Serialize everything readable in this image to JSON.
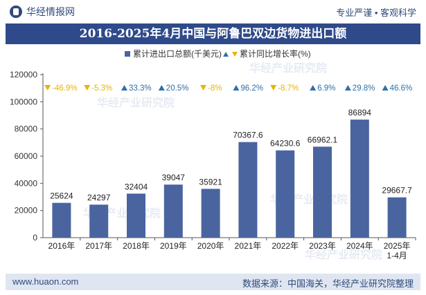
{
  "header": {
    "brand_name": "华经情报网",
    "tagline": "专业严谨 • 客观科学"
  },
  "title": "2016-2025年4月中国与阿鲁巴双边货物进出口额",
  "colors": {
    "bar": "#4a64a0",
    "growth_up": "#2f6fa8",
    "growth_down": "#e8b400",
    "title_bg": "#2f4a8a",
    "footer_bg": "#dfe6f1"
  },
  "watermark_text": "华经产业研究院",
  "chart_data": {
    "type": "bar",
    "categories": [
      "2016年",
      "2017年",
      "2018年",
      "2019年",
      "2020年",
      "2021年",
      "2022年",
      "2023年",
      "2024年",
      "2025年 1-4月"
    ],
    "series": [
      {
        "name": "累计进出口总额(千美元)",
        "values": [
          25624,
          24297,
          32404,
          39047,
          35921,
          70367.6,
          64230.6,
          66962.1,
          86894,
          29667.7
        ],
        "labels": [
          "25624",
          "24297",
          "32404",
          "39047",
          "35921",
          "70367.6",
          "64230.6",
          "66962.1",
          "86894",
          "29667.7"
        ]
      },
      {
        "name": "累计同比增长率(%)",
        "values": [
          -46.9,
          -5.3,
          33.3,
          20.5,
          -8,
          96.2,
          -8.7,
          6.9,
          29.8,
          46.6
        ],
        "labels": [
          "-46.9%",
          "-5.3%",
          "33.3%",
          "20.5%",
          "-8%",
          "96.2%",
          "-8.7%",
          "6.9%",
          "29.8%",
          "46.6%"
        ]
      }
    ],
    "yticks": [
      "0",
      "20000",
      "40000",
      "60000",
      "80000",
      "100000",
      "120000"
    ],
    "ylim": [
      0,
      120000
    ],
    "legend_position": "top-center"
  },
  "footer": {
    "website": "www.huaon.com",
    "source": "数据来源：中国海关，华经产业研究院整理"
  }
}
